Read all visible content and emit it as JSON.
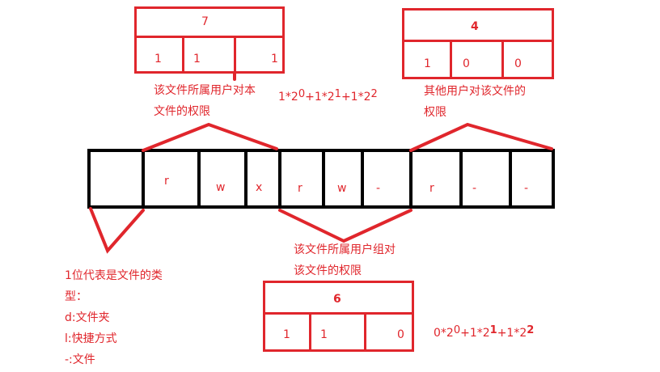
{
  "permission_bar": {
    "cells": [
      "",
      "r",
      "w",
      "x",
      "r",
      "w",
      "-",
      "r",
      "-",
      "-"
    ]
  },
  "owner_box": {
    "total": "7",
    "bits": [
      "1",
      "1",
      "1"
    ]
  },
  "other_box": {
    "total": "4",
    "bits": [
      "1",
      "0",
      "0"
    ]
  },
  "group_box": {
    "total": "6",
    "bits": [
      "1",
      "1",
      "0"
    ]
  },
  "labels": {
    "owner_line1": "该文件所属用户对本",
    "owner_line2": "文件的权限",
    "other_line1": "其他用户对该文件的",
    "other_line2": "权限",
    "group_line1": "该文件所属用户组对",
    "group_line2": "该文件的权限",
    "type_line1": "1位代表是文件的类",
    "type_line2": "型：",
    "type_line3": "d:文件夹",
    "type_line4": "l:快捷方式",
    "type_line5": "-:文件"
  },
  "formulas": {
    "owner": {
      "a": "1*2",
      "a_exp": "0",
      "b": "+1*2",
      "b_exp": "1",
      "c": "+1*2",
      "c_exp": "2"
    },
    "group": {
      "a": "0*2",
      "a_exp": "0",
      "b": "+1*2",
      "b_exp": "1",
      "c": "+1*2",
      "c_exp": "2"
    }
  },
  "colors": {
    "stroke": "#000000",
    "accent": "#e0262c"
  }
}
